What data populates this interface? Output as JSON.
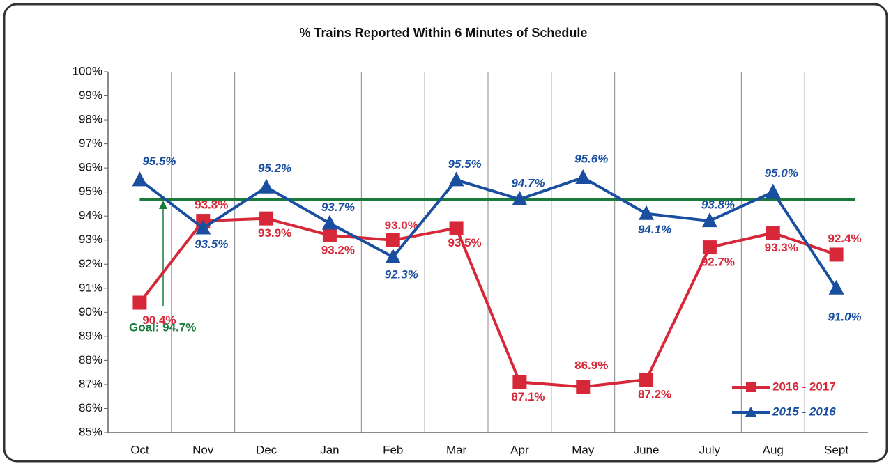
{
  "chart_data": {
    "type": "line",
    "title": "% Trains Reported Within 6 Minutes of Schedule",
    "categories": [
      "Oct",
      "Nov",
      "Dec",
      "Jan",
      "Feb",
      "Mar",
      "Apr",
      "May",
      "June",
      "July",
      "Aug",
      "Sept"
    ],
    "series": [
      {
        "name": "2016 - 2017",
        "color": "#d62839",
        "marker": "square",
        "values": [
          90.4,
          93.8,
          93.9,
          93.2,
          93.0,
          93.5,
          87.1,
          86.9,
          87.2,
          92.7,
          93.3,
          92.4
        ],
        "value_labels": [
          "90.4%",
          "93.8%",
          "93.9%",
          "93.2%",
          "93.0%",
          "93.5%",
          "87.1%",
          "86.9%",
          "87.2%",
          "92.7%",
          "93.3%",
          "92.4%"
        ]
      },
      {
        "name": "2015 - 2016",
        "color": "#1a4fa0",
        "marker": "triangle",
        "values": [
          95.5,
          93.5,
          95.2,
          93.7,
          92.3,
          95.5,
          94.7,
          95.6,
          94.1,
          93.8,
          95.0,
          91.0
        ],
        "value_labels": [
          "95.5%",
          "93.5%",
          "95.2%",
          "93.7%",
          "92.3%",
          "95.5%",
          "94.7%",
          "95.6%",
          "94.1%",
          "93.8%",
          "95.0%",
          "91.0%"
        ]
      }
    ],
    "goal": {
      "value": 94.7,
      "label": "Goal: 94.7%",
      "color": "#1a7a3a"
    },
    "ylim": [
      85,
      100
    ],
    "yticks": [
      {
        "value": 85,
        "label": "85%"
      },
      {
        "value": 86,
        "label": "86%"
      },
      {
        "value": 87,
        "label": "87%"
      },
      {
        "value": 88,
        "label": "88%"
      },
      {
        "value": 89,
        "label": "89%"
      },
      {
        "value": 90,
        "label": "90%"
      },
      {
        "value": 91,
        "label": "91%"
      },
      {
        "value": 92,
        "label": "92%"
      },
      {
        "value": 93,
        "label": "93%"
      },
      {
        "value": 94,
        "label": "94%"
      },
      {
        "value": 95,
        "label": "95%"
      },
      {
        "value": 96,
        "label": "96%"
      },
      {
        "value": 97,
        "label": "97%"
      },
      {
        "value": 98,
        "label": "98%"
      },
      {
        "value": 99,
        "label": "99%"
      },
      {
        "value": 100,
        "label": "100%"
      }
    ],
    "legend": "bottom-right"
  }
}
